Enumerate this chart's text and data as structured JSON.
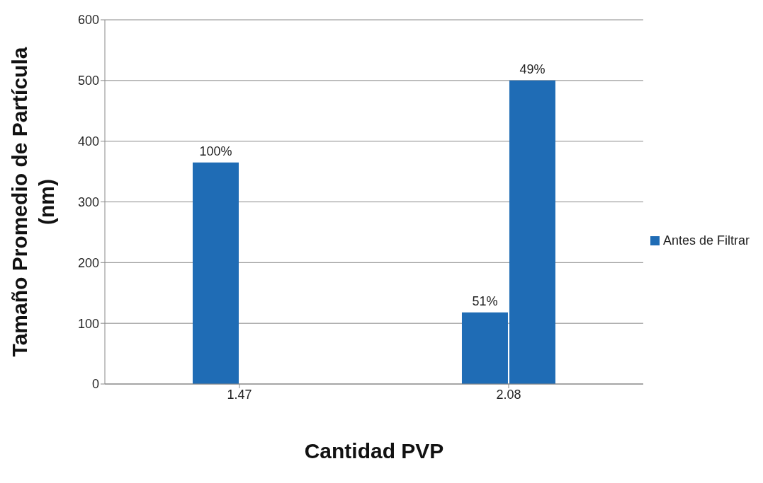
{
  "chart_data": {
    "type": "bar",
    "xlabel": "Cantidad PVP",
    "ylabel": "Tamaño Promedio de Partícula (nm)",
    "categories": [
      "1.47",
      "2.08"
    ],
    "series": [
      {
        "name": "Antes de Filtrar",
        "color": "#1f6cb5",
        "values": [
          365,
          118
        ]
      },
      {
        "color": "#1f6cb5",
        "values": [
          null,
          500
        ]
      }
    ],
    "annotations": [
      {
        "text": "100%",
        "x": "1.47",
        "y": 365
      },
      {
        "text": "51%",
        "x": "2.08",
        "y": 118
      },
      {
        "text": "49%",
        "x": "2.08",
        "y": 500
      }
    ],
    "ylim": [
      0,
      600
    ],
    "yticks": [
      0,
      100,
      200,
      300,
      400,
      500,
      600
    ],
    "grid": "y",
    "legend": "right"
  }
}
